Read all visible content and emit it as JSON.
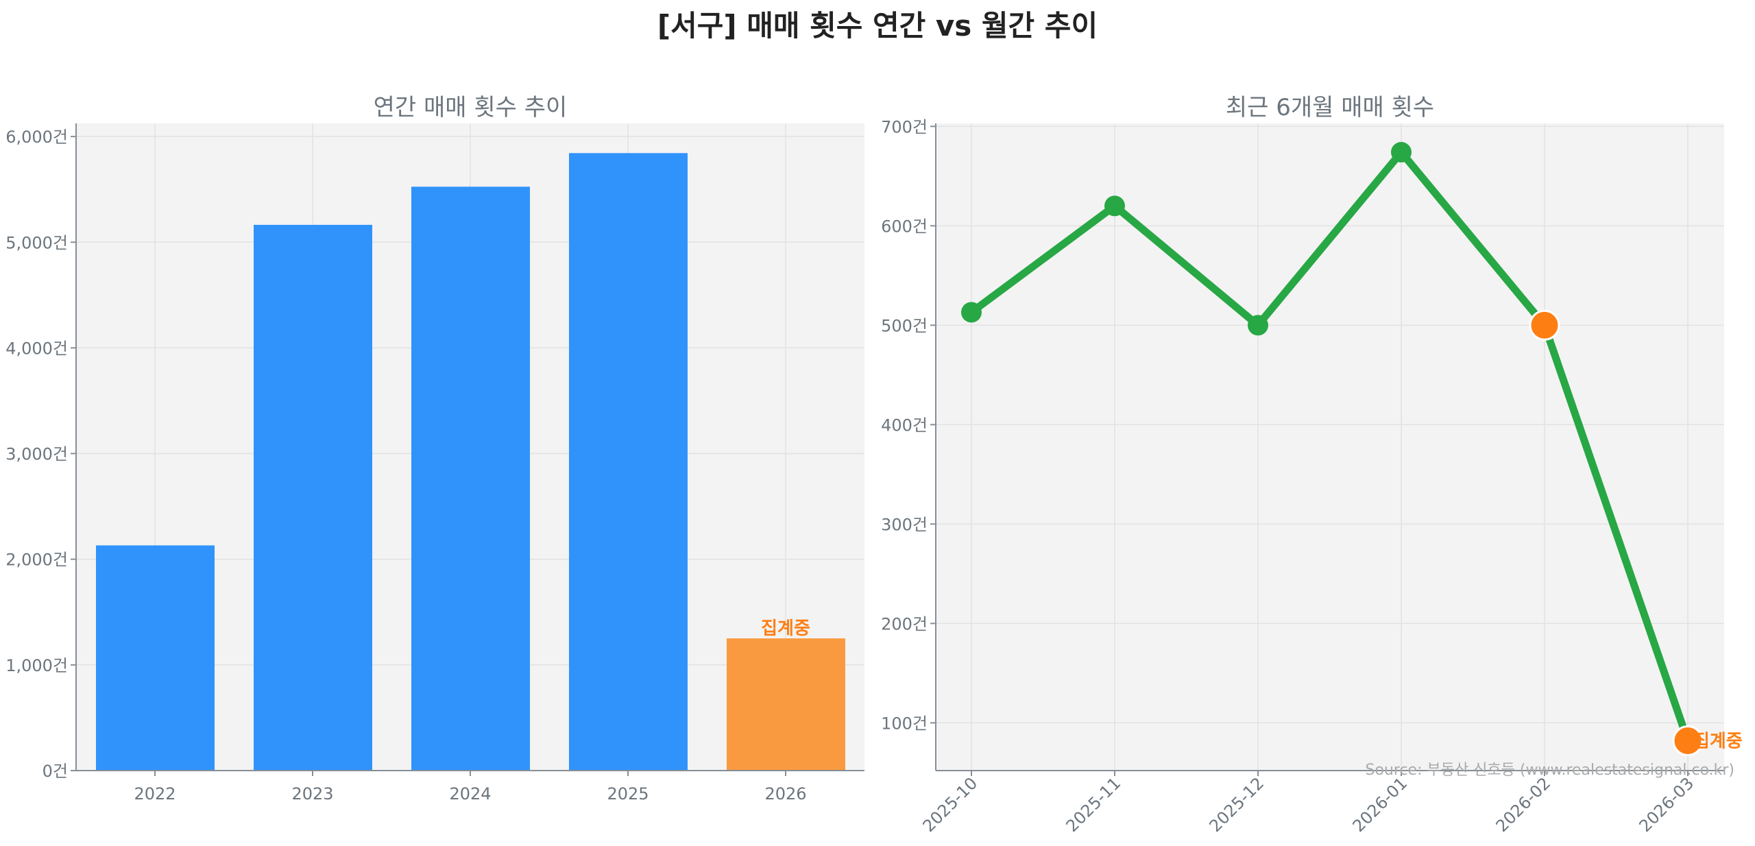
{
  "title": "[서구] 매매 횟수 연간 vs 월간 추이",
  "source": "Source: 부동산 신호등 (www.realestatesignal.co.kr)",
  "colors": {
    "bar": "#3093fb",
    "bar_partial": "#f99a40",
    "line": "#28a745",
    "partial_marker": "#fd7f14",
    "partial_text": "#fd7f14",
    "axis_text": "#6c757d"
  },
  "chart_data": [
    {
      "type": "bar",
      "title": "연간 매매 횟수 추이",
      "categories": [
        "2022",
        "2023",
        "2024",
        "2025",
        "2026"
      ],
      "values": [
        2131,
        5164,
        5525,
        5843,
        1251
      ],
      "partial_index": 4,
      "partial_label": "집계중",
      "ylim": [
        0,
        6124
      ],
      "yticks": [
        0,
        1000,
        2000,
        3000,
        4000,
        5000,
        6000
      ],
      "ytick_labels": [
        "0건",
        "1,000건",
        "2,000건",
        "3,000건",
        "4,000건",
        "5,000건",
        "6,000건"
      ],
      "grid": true
    },
    {
      "type": "line",
      "title": "최근 6개월 매매 횟수",
      "categories": [
        "2025-10",
        "2025-11",
        "2025-12",
        "2026-01",
        "2026-02",
        "2026-03"
      ],
      "values": [
        513,
        620,
        500,
        674,
        500,
        82
      ],
      "partial_indices": [
        4,
        5
      ],
      "partial_label": "집계중",
      "ylim": [
        52,
        703
      ],
      "yticks": [
        100,
        200,
        300,
        400,
        500,
        600,
        700
      ],
      "ytick_labels": [
        "100건",
        "200건",
        "300건",
        "400건",
        "500건",
        "600건",
        "700건"
      ],
      "grid": true
    }
  ]
}
